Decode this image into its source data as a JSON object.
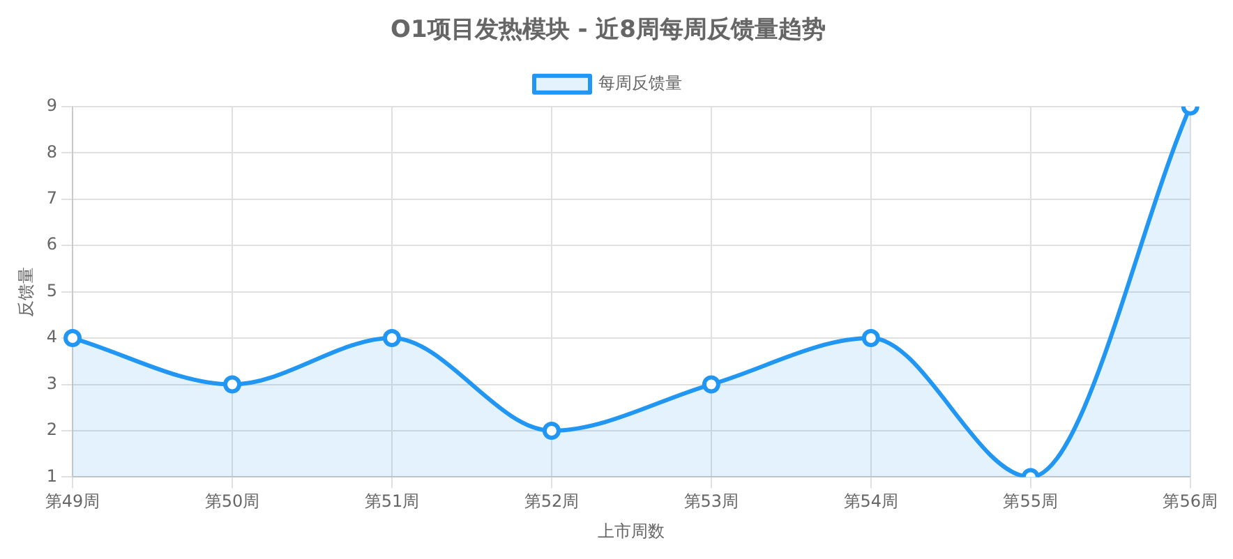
{
  "chart_data": {
    "type": "area",
    "title": "O1项目发热模块 - 近8周每周反馈量趋势",
    "xlabel": "上市周数",
    "ylabel": "反馈量",
    "categories": [
      "第49周",
      "第50周",
      "第51周",
      "第52周",
      "第53周",
      "第54周",
      "第55周",
      "第56周"
    ],
    "series": [
      {
        "name": "每周反馈量",
        "color": "#2196f3",
        "values": [
          4,
          3,
          4,
          2,
          3,
          4,
          1,
          9
        ]
      }
    ],
    "ylim": [
      1,
      9
    ],
    "yticks": [
      1,
      2,
      3,
      4,
      5,
      6,
      7,
      8,
      9
    ],
    "grid": true,
    "legend": "top",
    "marker": "circle",
    "line_style": "solid"
  }
}
